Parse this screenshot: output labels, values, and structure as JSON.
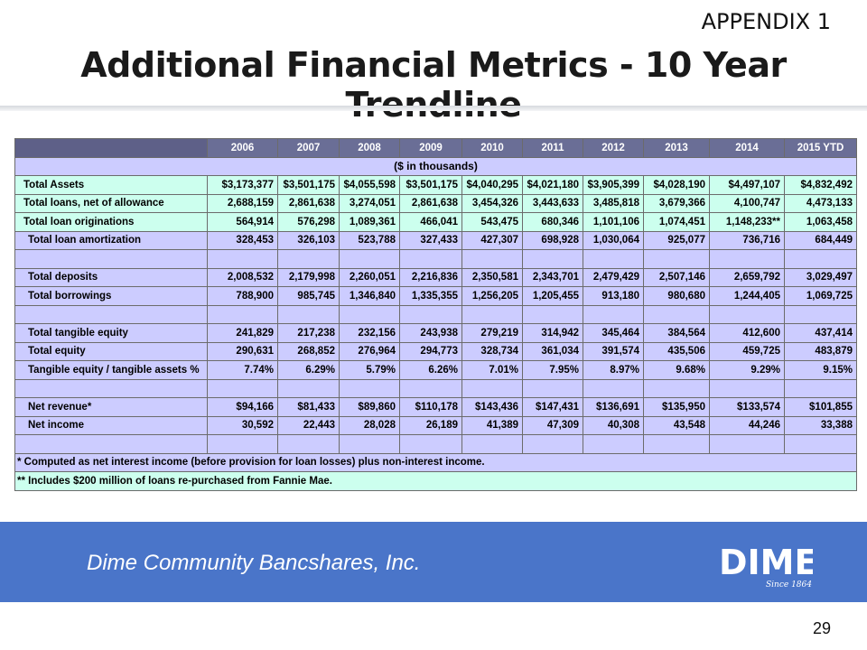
{
  "header": {
    "appendix": "APPENDIX 1",
    "title": "Additional Financial Metrics - 10 Year Trendline"
  },
  "table": {
    "years": [
      "2006",
      "2007",
      "2008",
      "2009",
      "2010",
      "2011",
      "2012",
      "2013",
      "2014",
      "2015 YTD"
    ],
    "units": "($ in thousands)",
    "rows": [
      {
        "type": "data",
        "style": "green",
        "indent": false,
        "label": "Total Assets",
        "values": [
          "$3,173,377",
          "$3,501,175",
          "$4,055,598",
          "$3,501,175",
          "$4,040,295",
          "$4,021,180",
          "$3,905,399",
          "$4,028,190",
          "$4,497,107",
          "$4,832,492"
        ]
      },
      {
        "type": "data",
        "style": "green",
        "indent": false,
        "label": "Total loans, net of allowance",
        "values": [
          "2,688,159",
          "2,861,638",
          "3,274,051",
          "2,861,638",
          "3,454,326",
          "3,443,633",
          "3,485,818",
          "3,679,366",
          "4,100,747",
          "4,473,133"
        ]
      },
      {
        "type": "data",
        "style": "green",
        "indent": false,
        "label": "Total loan originations",
        "values": [
          "564,914",
          "576,298",
          "1,089,361",
          "466,041",
          "543,475",
          "680,346",
          "1,101,106",
          "1,074,451",
          "1,148,233**",
          "1,063,458"
        ]
      },
      {
        "type": "data",
        "style": "lav",
        "indent": true,
        "label": "Total loan amortization",
        "values": [
          "328,453",
          "326,103",
          "523,788",
          "327,433",
          "427,307",
          "698,928",
          "1,030,064",
          "925,077",
          "736,716",
          "684,449"
        ]
      },
      {
        "type": "blank",
        "style": "lav"
      },
      {
        "type": "data",
        "style": "lav",
        "indent": true,
        "label": "Total deposits",
        "values": [
          "2,008,532",
          "2,179,998",
          "2,260,051",
          "2,216,836",
          "2,350,581",
          "2,343,701",
          "2,479,429",
          "2,507,146",
          "2,659,792",
          "3,029,497"
        ]
      },
      {
        "type": "data",
        "style": "lav",
        "indent": true,
        "label": "Total borrowings",
        "values": [
          "788,900",
          "985,745",
          "1,346,840",
          "1,335,355",
          "1,256,205",
          "1,205,455",
          "913,180",
          "980,680",
          "1,244,405",
          "1,069,725"
        ]
      },
      {
        "type": "blank",
        "style": "lav"
      },
      {
        "type": "data",
        "style": "lav",
        "indent": true,
        "label": "Total tangible equity",
        "values": [
          "241,829",
          "217,238",
          "232,156",
          "243,938",
          "279,219",
          "314,942",
          "345,464",
          "384,564",
          "412,600",
          "437,414"
        ]
      },
      {
        "type": "data",
        "style": "lav",
        "indent": true,
        "label": "Total equity",
        "values": [
          "290,631",
          "268,852",
          "276,964",
          "294,773",
          "328,734",
          "361,034",
          "391,574",
          "435,506",
          "459,725",
          "483,879"
        ]
      },
      {
        "type": "data",
        "style": "lav",
        "indent": true,
        "label": "Tangible equity / tangible assets %",
        "values": [
          "7.74%",
          "6.29%",
          "5.79%",
          "6.26%",
          "7.01%",
          "7.95%",
          "8.97%",
          "9.68%",
          "9.29%",
          "9.15%"
        ]
      },
      {
        "type": "blank",
        "style": "lav"
      },
      {
        "type": "data",
        "style": "lav",
        "indent": true,
        "label": "Net revenue*",
        "values": [
          "$94,166",
          "$81,433",
          "$89,860",
          "$110,178",
          "$143,436",
          "$147,431",
          "$136,691",
          "$135,950",
          "$133,574",
          "$101,855"
        ]
      },
      {
        "type": "data",
        "style": "lav",
        "indent": true,
        "label": "Net income",
        "values": [
          "30,592",
          "22,443",
          "28,028",
          "26,189",
          "41,389",
          "47,309",
          "40,308",
          "43,548",
          "44,246",
          "33,388"
        ]
      },
      {
        "type": "blank",
        "style": "lav"
      }
    ],
    "footnotes": [
      {
        "style": "lav",
        "text": "*  Computed as net interest income (before provision for loan losses) plus non-interest income."
      },
      {
        "style": "green",
        "text": "** Includes $200 million of loans re-purchased from Fannie Mae."
      }
    ]
  },
  "footer": {
    "company": "Dime Community Bancshares, Inc.",
    "logo_text": "DIME",
    "logo_tagline": "Since 1864",
    "page_number": "29"
  },
  "colors": {
    "header_bg": "#6a6e96",
    "green_row": "#ccffee",
    "lavender_row": "#ccccff",
    "footer_band": "#4a75c9"
  }
}
